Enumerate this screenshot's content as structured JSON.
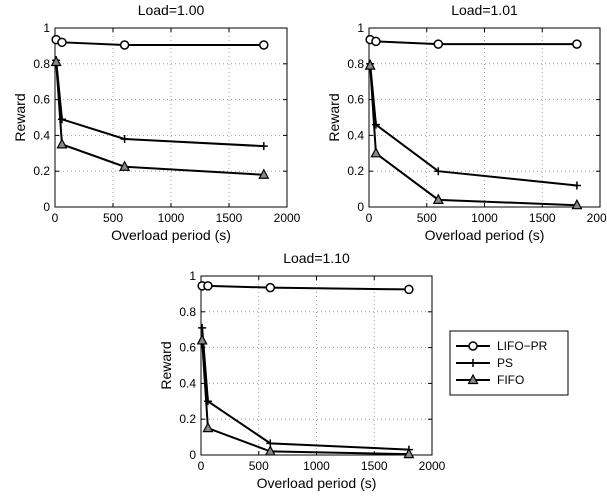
{
  "figure": {
    "legend": {
      "placement": "right of bottom panel",
      "entries": [
        {
          "label": "LIFO−PR",
          "marker": "circle"
        },
        {
          "label": "PS",
          "marker": "plus"
        },
        {
          "label": "FIFO",
          "marker": "triangle"
        }
      ]
    }
  },
  "chart_data": [
    {
      "type": "line",
      "title": "Load=1.00",
      "xlabel": "Overload period (s)",
      "ylabel": "Reward",
      "xlim": [
        0,
        2000
      ],
      "ylim": [
        0,
        1
      ],
      "xticks": [
        "0",
        "500",
        "1000",
        "1500",
        "2000"
      ],
      "yticks": [
        "0",
        "0.2",
        "0.4",
        "0.6",
        "0.8",
        "1"
      ],
      "grid": true,
      "series": [
        {
          "name": "LIFO−PR",
          "marker": "circle",
          "x": [
            10,
            60,
            600,
            1800
          ],
          "y": [
            0.935,
            0.92,
            0.905,
            0.905
          ]
        },
        {
          "name": "PS",
          "marker": "plus",
          "x": [
            10,
            60,
            600,
            1800
          ],
          "y": [
            0.82,
            0.49,
            0.38,
            0.34
          ]
        },
        {
          "name": "FIFO",
          "marker": "triangle",
          "x": [
            10,
            60,
            600,
            1800
          ],
          "y": [
            0.81,
            0.35,
            0.225,
            0.18
          ]
        }
      ]
    },
    {
      "type": "line",
      "title": "Load=1.01",
      "xlabel": "Overload period (s)",
      "ylabel": "Reward",
      "xlim": [
        0,
        2000
      ],
      "ylim": [
        0,
        1
      ],
      "xticks": [
        "0",
        "500",
        "1000",
        "1500",
        "2000"
      ],
      "yticks": [
        "0",
        "0.2",
        "0.4",
        "0.6",
        "0.8",
        "1"
      ],
      "grid": true,
      "series": [
        {
          "name": "LIFO−PR",
          "marker": "circle",
          "x": [
            10,
            60,
            600,
            1800
          ],
          "y": [
            0.935,
            0.925,
            0.91,
            0.91
          ]
        },
        {
          "name": "PS",
          "marker": "plus",
          "x": [
            10,
            60,
            600,
            1800
          ],
          "y": [
            0.8,
            0.46,
            0.2,
            0.12
          ]
        },
        {
          "name": "FIFO",
          "marker": "triangle",
          "x": [
            10,
            60,
            600,
            1800
          ],
          "y": [
            0.79,
            0.3,
            0.04,
            0.01
          ]
        }
      ]
    },
    {
      "type": "line",
      "title": "Load=1.10",
      "xlabel": "Overload period (s)",
      "ylabel": "Reward",
      "xlim": [
        0,
        2000
      ],
      "ylim": [
        0,
        1
      ],
      "xticks": [
        "0",
        "500",
        "1000",
        "1500",
        "2000"
      ],
      "yticks": [
        "0",
        "0.2",
        "0.4",
        "0.6",
        "0.8",
        "1"
      ],
      "grid": true,
      "series": [
        {
          "name": "LIFO−PR",
          "marker": "circle",
          "x": [
            10,
            60,
            600,
            1800
          ],
          "y": [
            0.945,
            0.945,
            0.935,
            0.925
          ]
        },
        {
          "name": "PS",
          "marker": "plus",
          "x": [
            10,
            60,
            600,
            1800
          ],
          "y": [
            0.71,
            0.3,
            0.065,
            0.03
          ]
        },
        {
          "name": "FIFO",
          "marker": "triangle",
          "x": [
            10,
            60,
            600,
            1800
          ],
          "y": [
            0.64,
            0.15,
            0.02,
            0.005
          ]
        }
      ]
    }
  ]
}
